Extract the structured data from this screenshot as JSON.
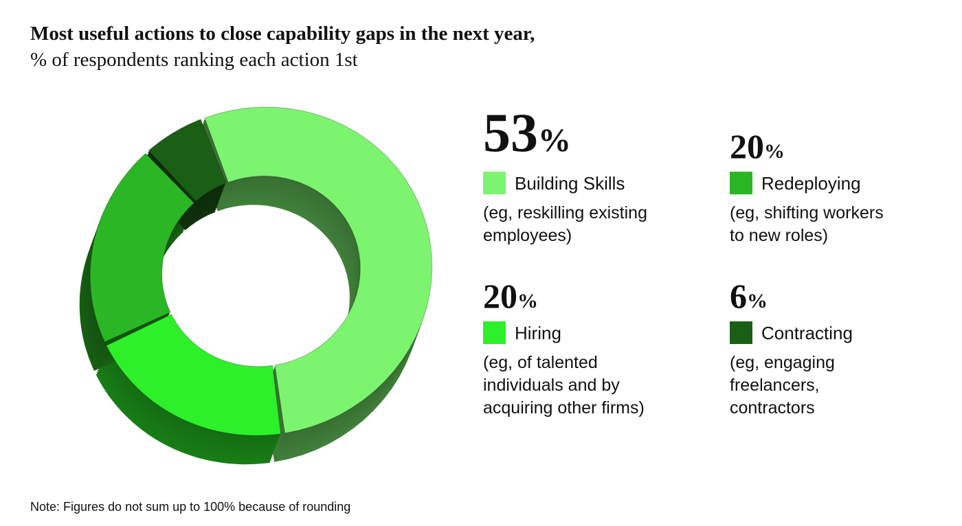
{
  "chart_data": {
    "type": "donut",
    "title": "Most useful actions to close capability gaps in the next year,",
    "subtitle": "% of respondents ranking each action 1st",
    "categories": [
      "Building Skills",
      "Hiring",
      "Redeploying",
      "Contracting"
    ],
    "values": [
      53,
      20,
      20,
      6
    ],
    "value_labels": [
      "53%",
      "20%",
      "20%",
      "6%"
    ],
    "colors": [
      "#7cf46f",
      "#2ef02a",
      "#2bb625",
      "#1b5e16"
    ],
    "descriptions": [
      [
        "(eg, reskilling existing",
        "employees)"
      ],
      [
        "(eg, of talented",
        "individuals and by",
        "acquiring other firms)"
      ],
      [
        "(eg, shifting workers",
        "to new roles)"
      ],
      [
        "(eg, engaging",
        "freelancers,",
        "contractors"
      ]
    ],
    "note": "Note: Figures do not sum up to 100% because of rounding"
  }
}
